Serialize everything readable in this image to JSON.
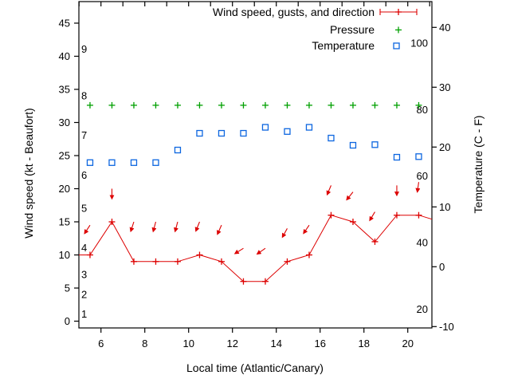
{
  "figure": {
    "background": "#ffffff",
    "colors": {
      "wind": "#dd0000",
      "pressure": "#00a000",
      "temperature": "#0d66e0",
      "axis": "#000000"
    },
    "xlabel": "Local time (Atlantic/Canary)",
    "ylabel_left": "Wind speed (kt - Beaufort)",
    "ylabel_right": "Temperature (C - F)"
  },
  "legend": [
    {
      "label": "Wind speed, gusts, and direction",
      "series": "wind",
      "marker": "errorbar-plus"
    },
    {
      "label": "Pressure",
      "series": "pressure",
      "marker": "plus"
    },
    {
      "label": "Temperature",
      "series": "temperature",
      "marker": "open-square"
    }
  ],
  "chart_data": {
    "type": "line",
    "title": "",
    "x_axis": {
      "label": "Local time (Atlantic/Canary)",
      "range": [
        5,
        21.17
      ],
      "ticks": [
        6,
        8,
        10,
        12,
        14,
        16,
        18,
        20
      ],
      "top_hourly_ticks": [
        5,
        6,
        7,
        8,
        9,
        10,
        11,
        12,
        13,
        14,
        15,
        16,
        17,
        18,
        19,
        20,
        21
      ]
    },
    "y_axis_left": {
      "label": "Wind speed (kt - Beaufort)",
      "range": [
        -1,
        48.2
      ],
      "ticks": [
        0,
        5,
        10,
        15,
        20,
        25,
        30,
        35,
        40,
        45
      ],
      "beaufort_inner_labels": [
        {
          "beaufort": "1",
          "kt": 1
        },
        {
          "beaufort": "2",
          "kt": 4
        },
        {
          "beaufort": "3",
          "kt": 7
        },
        {
          "beaufort": "4",
          "kt": 11
        },
        {
          "beaufort": "5",
          "kt": 17
        },
        {
          "beaufort": "6",
          "kt": 22
        },
        {
          "beaufort": "7",
          "kt": 28
        },
        {
          "beaufort": "8",
          "kt": 34
        },
        {
          "beaufort": "9",
          "kt": 41
        }
      ]
    },
    "y_axis_right": {
      "label": "Temperature (C - F)",
      "range_celsius": [
        -10.2,
        44.3
      ],
      "ticks_celsius": [
        -10,
        0,
        10,
        20,
        30,
        40
      ],
      "fahrenheit_inner_labels": [
        20,
        40,
        60,
        80,
        100
      ]
    },
    "times": [
      5.5,
      6.5,
      7.5,
      8.5,
      9.5,
      10.5,
      11.5,
      12.5,
      13.5,
      14.5,
      15.5,
      16.5,
      17.5,
      18.5,
      19.5,
      20.5
    ],
    "series": [
      {
        "name": "Wind speed",
        "unit": "kt",
        "values": [
          10,
          15,
          9,
          9,
          9,
          10,
          9,
          6,
          6,
          9,
          10,
          16,
          15,
          12,
          16,
          16
        ],
        "edge_clip": {
          "left_kt": 10,
          "right_kt": 15.4
        }
      },
      {
        "name": "Gusts and direction",
        "unit": "kt",
        "values": [
          14.5,
          20,
          15,
          15,
          15,
          15,
          14.5,
          11,
          11,
          14,
          14.5,
          20.5,
          19.5,
          16.5,
          20.5,
          21
        ],
        "direction_deg_left_of_down": [
          33,
          0,
          18,
          15,
          15,
          22,
          24,
          58,
          55,
          29,
          34,
          23,
          39,
          31,
          0,
          8
        ]
      },
      {
        "name": "Pressure",
        "note": "constant level, no numeric axis shown",
        "plotted_level_left_axis_units": 32.6
      },
      {
        "name": "Temperature",
        "unit": "C",
        "values": [
          17.4,
          17.4,
          17.4,
          17.4,
          19.5,
          22.3,
          22.3,
          22.3,
          23.3,
          22.6,
          23.3,
          21.5,
          20.3,
          20.4,
          18.3,
          18.4
        ]
      }
    ],
    "grid": false,
    "legend_position": "top-right-inside"
  }
}
